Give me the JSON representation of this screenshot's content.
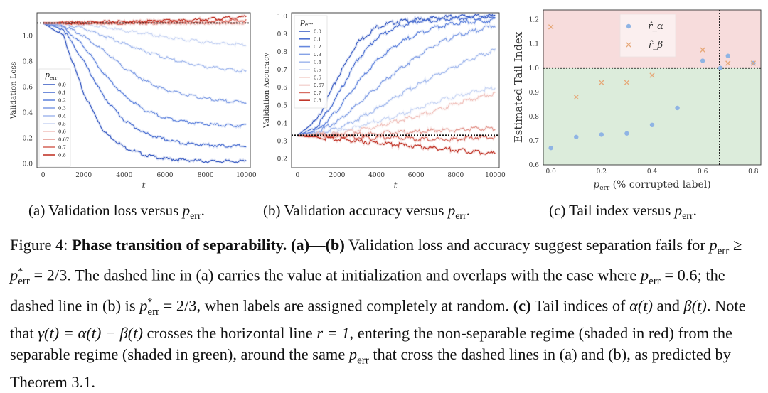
{
  "chart_data": [
    {
      "type": "line",
      "title": "",
      "xlabel": "t",
      "ylabel": "Validation Loss",
      "xlim": [
        -300,
        10200
      ],
      "ylim": [
        -0.03,
        1.18
      ],
      "xticks": [
        "0",
        "2000",
        "4000",
        "6000",
        "8000",
        "10000"
      ],
      "yticks": [
        "0.0",
        "0.2",
        "0.4",
        "0.6",
        "0.8",
        "1.0"
      ],
      "legend_title": "p_err",
      "legend_position": "lower-left",
      "dashed_reference_y": 1.1,
      "x": [
        0,
        1000,
        2000,
        3000,
        4000,
        5000,
        6000,
        7000,
        8000,
        9000,
        10000
      ],
      "series": [
        {
          "name": "0.0",
          "color": "#3d5fc4",
          "values": [
            1.1,
            1.0,
            0.55,
            0.25,
            0.13,
            0.07,
            0.04,
            0.03,
            0.02,
            0.02,
            0.02
          ]
        },
        {
          "name": "0.1",
          "color": "#4f72d2",
          "values": [
            1.1,
            1.05,
            0.8,
            0.52,
            0.34,
            0.24,
            0.19,
            0.16,
            0.15,
            0.14,
            0.14
          ]
        },
        {
          "name": "0.2",
          "color": "#6688de",
          "values": [
            1.1,
            1.07,
            0.92,
            0.7,
            0.53,
            0.42,
            0.36,
            0.33,
            0.31,
            0.3,
            0.3
          ]
        },
        {
          "name": "0.3",
          "color": "#86a2e6",
          "values": [
            1.1,
            1.08,
            1.0,
            0.88,
            0.75,
            0.65,
            0.58,
            0.54,
            0.51,
            0.49,
            0.48
          ]
        },
        {
          "name": "0.4",
          "color": "#a8bdee",
          "values": [
            1.1,
            1.09,
            1.06,
            1.0,
            0.94,
            0.88,
            0.83,
            0.79,
            0.76,
            0.74,
            0.72
          ]
        },
        {
          "name": "0.5",
          "color": "#cbd7f4",
          "values": [
            1.1,
            1.1,
            1.09,
            1.07,
            1.04,
            1.02,
            0.99,
            0.97,
            0.95,
            0.94,
            0.93
          ]
        },
        {
          "name": "0.6",
          "color": "#f1c4bf",
          "values": [
            1.1,
            1.1,
            1.1,
            1.1,
            1.1,
            1.1,
            1.1,
            1.1,
            1.1,
            1.1,
            1.1
          ]
        },
        {
          "name": "0.67",
          "color": "#e59b93",
          "values": [
            1.1,
            1.1,
            1.1,
            1.1,
            1.1,
            1.1,
            1.1,
            1.1,
            1.1,
            1.1,
            1.11
          ]
        },
        {
          "name": "0.7",
          "color": "#d76d62",
          "values": [
            1.1,
            1.1,
            1.1,
            1.1,
            1.1,
            1.11,
            1.11,
            1.11,
            1.11,
            1.12,
            1.12
          ]
        },
        {
          "name": "0.8",
          "color": "#c1372b",
          "values": [
            1.1,
            1.1,
            1.1,
            1.11,
            1.11,
            1.11,
            1.12,
            1.12,
            1.13,
            1.14,
            1.15
          ]
        }
      ]
    },
    {
      "type": "line",
      "title": "",
      "xlabel": "t",
      "ylabel": "Validation Accuracy",
      "xlim": [
        -300,
        10200
      ],
      "ylim": [
        0.15,
        1.02
      ],
      "xticks": [
        "0",
        "2000",
        "4000",
        "6000",
        "8000",
        "10000"
      ],
      "yticks": [
        "0.2",
        "0.3",
        "0.4",
        "0.5",
        "0.6",
        "0.7",
        "0.8",
        "0.9",
        "1.0"
      ],
      "legend_title": "p_err",
      "legend_position": "upper-left",
      "dashed_reference_y": 0.333,
      "x": [
        0,
        1000,
        2000,
        3000,
        4000,
        5000,
        6000,
        7000,
        8000,
        9000,
        10000
      ],
      "series": [
        {
          "name": "0.0",
          "color": "#3d5fc4",
          "values": [
            0.33,
            0.42,
            0.65,
            0.85,
            0.94,
            0.97,
            0.98,
            0.99,
            1.0,
            1.0,
            1.0
          ]
        },
        {
          "name": "0.1",
          "color": "#4f72d2",
          "values": [
            0.33,
            0.38,
            0.55,
            0.75,
            0.88,
            0.94,
            0.97,
            0.98,
            0.99,
            0.99,
            1.0
          ]
        },
        {
          "name": "0.2",
          "color": "#6688de",
          "values": [
            0.33,
            0.36,
            0.47,
            0.62,
            0.75,
            0.84,
            0.9,
            0.94,
            0.96,
            0.97,
            0.98
          ]
        },
        {
          "name": "0.3",
          "color": "#86a2e6",
          "values": [
            0.33,
            0.35,
            0.41,
            0.5,
            0.6,
            0.69,
            0.77,
            0.84,
            0.89,
            0.92,
            0.95
          ]
        },
        {
          "name": "0.4",
          "color": "#a8bdee",
          "values": [
            0.33,
            0.34,
            0.37,
            0.42,
            0.48,
            0.55,
            0.61,
            0.67,
            0.72,
            0.77,
            0.81
          ]
        },
        {
          "name": "0.5",
          "color": "#cbd7f4",
          "values": [
            0.33,
            0.34,
            0.35,
            0.38,
            0.41,
            0.44,
            0.48,
            0.52,
            0.55,
            0.58,
            0.6
          ]
        },
        {
          "name": "0.6",
          "color": "#f1c4bf",
          "values": [
            0.33,
            0.34,
            0.34,
            0.36,
            0.38,
            0.41,
            0.44,
            0.47,
            0.51,
            0.54,
            0.57
          ]
        },
        {
          "name": "0.67",
          "color": "#e59b93",
          "values": [
            0.33,
            0.33,
            0.33,
            0.34,
            0.34,
            0.35,
            0.35,
            0.36,
            0.36,
            0.37,
            0.37
          ]
        },
        {
          "name": "0.7",
          "color": "#d76d62",
          "values": [
            0.33,
            0.33,
            0.33,
            0.32,
            0.32,
            0.32,
            0.31,
            0.31,
            0.31,
            0.32,
            0.32
          ]
        },
        {
          "name": "0.8",
          "color": "#c1372b",
          "values": [
            0.33,
            0.32,
            0.31,
            0.3,
            0.29,
            0.28,
            0.27,
            0.26,
            0.25,
            0.24,
            0.23
          ]
        }
      ]
    },
    {
      "type": "scatter",
      "title": "",
      "xlabel": "p_err (% corrupted label)",
      "ylabel": "Estimated Tail Index",
      "xlim": [
        -0.03,
        0.83
      ],
      "ylim": [
        0.6,
        1.24
      ],
      "xticks": [
        "0.0",
        "0.2",
        "0.4",
        "0.6",
        "0.8"
      ],
      "yticks": [
        "0.6",
        "0.7",
        "0.8",
        "0.9",
        "1.0",
        "1.1",
        "1.2"
      ],
      "legend_position": "upper-center",
      "hline_y": 1.0,
      "vline_x": 0.667,
      "region_above_color": "#f7dcdc",
      "region_below_color": "#dcecdb",
      "series": [
        {
          "name": "r̂_α",
          "marker": "circle",
          "color": "#8fb4e4",
          "points": [
            [
              0.0,
              0.67
            ],
            [
              0.1,
              0.715
            ],
            [
              0.2,
              0.725
            ],
            [
              0.3,
              0.73
            ],
            [
              0.4,
              0.765
            ],
            [
              0.5,
              0.835
            ],
            [
              0.6,
              1.03
            ],
            [
              0.67,
              1.0
            ],
            [
              0.7,
              1.05
            ],
            [
              0.8,
              1.02
            ]
          ]
        },
        {
          "name": "r̂_β",
          "marker": "x",
          "color": "#e6a777",
          "points": [
            [
              0.0,
              1.17
            ],
            [
              0.1,
              0.88
            ],
            [
              0.2,
              0.94
            ],
            [
              0.3,
              0.94
            ],
            [
              0.4,
              0.97
            ],
            [
              0.6,
              1.075
            ],
            [
              0.7,
              1.02
            ],
            [
              0.8,
              1.02
            ]
          ]
        }
      ]
    }
  ],
  "subcaptions": {
    "a": "(a) Validation loss versus ",
    "b": "(b) Validation accuracy versus ",
    "c": "(c) Tail index versus ",
    "var": "p",
    "var_sub": "err",
    "end": "."
  },
  "caption": {
    "prefix": "Figure 4: ",
    "bold_title": "Phase transition of separability. (a)—(b)",
    "line1_rest": " Validation loss and accuracy suggest separation",
    "line2_a": "fails for ",
    "ineq": "p",
    "ineq_sub": "err",
    "ineq_mid": " ≥ p",
    "ineq_star": "*",
    "ineq_sub2": "err",
    "ineq_val": " = 2/3",
    "line2_b": ". The dashed line in (a) carries the value at initialization and overlaps with",
    "line3_a": "the case where ",
    "line3_math": " = 0.6",
    "line3_b": "; the dashed line in (b) is ",
    "line3_math2": " = 2/3",
    "line3_c": ", when labels are assigned completely",
    "line4_a": "at random. ",
    "line4_bold": "(c)",
    "line4_b": " Tail indices of ",
    "alpha_t": "α(t)",
    "and": " and ",
    "beta_t": "β(t)",
    "line4_c": ". Note that ",
    "gamma_eq": "γ(t) = α(t) − β(t)",
    "line4_d": " crosses the horizontal",
    "line5_a": "line ",
    "r_eq": "r = 1",
    "line5_b": ", entering the non-separable regime (shaded in red) from the separable regime (shaded in",
    "line6_a": "green), around the same ",
    "line6_b": " that cross the dashed lines in (a) and (b), as predicted by Theorem 3.1."
  }
}
